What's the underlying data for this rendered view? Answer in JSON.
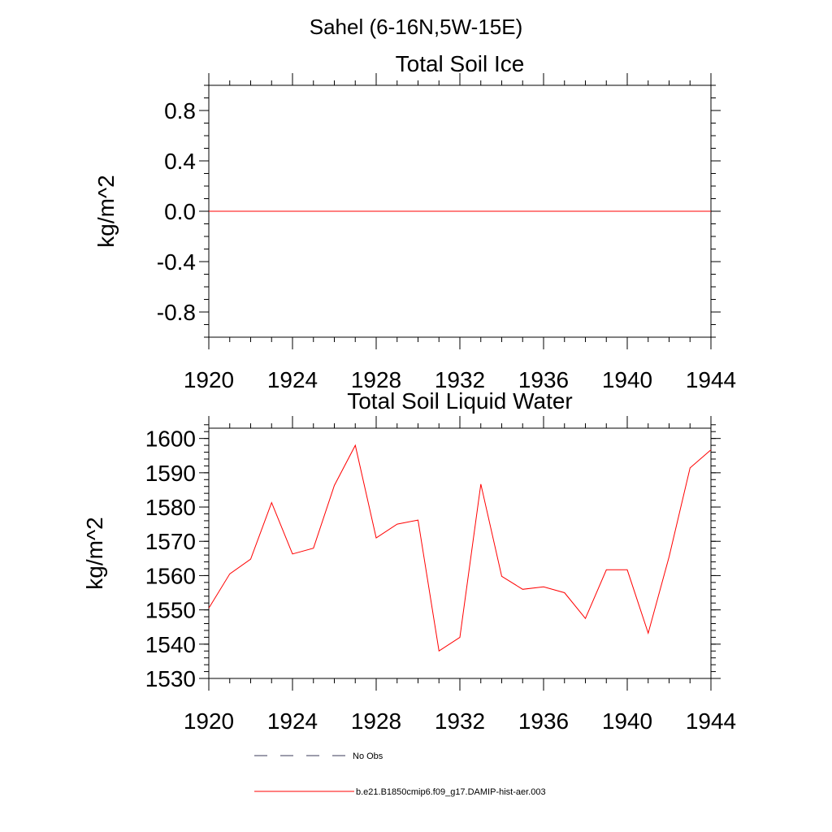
{
  "page_title": "Sahel (6-16N,5W-15E)",
  "colors": {
    "model": "#ff0000",
    "obs": "#3a3a5a",
    "axis": "#000000"
  },
  "chart_data": [
    {
      "type": "line",
      "title": "Total Soil Ice",
      "xlabel": "",
      "ylabel": "kg/m^2",
      "xlim": [
        1920,
        1944
      ],
      "ylim": [
        -1.0,
        1.0
      ],
      "xticks": [
        1920,
        1924,
        1928,
        1932,
        1936,
        1940,
        1944
      ],
      "xtick_labels": [
        "1920",
        "1924",
        "1928",
        "1932",
        "1936",
        "1940",
        "1944"
      ],
      "yticks": [
        -0.8,
        -0.4,
        0.0,
        0.4,
        0.8
      ],
      "ytick_labels": [
        "-0.8",
        "-0.4",
        "0.0",
        "0.4",
        "0.8"
      ],
      "grid": false,
      "series": [
        {
          "name": "b.e21.B1850cmip6.f09_g17.DAMIP-hist-aer.003",
          "x": [
            1920,
            1921,
            1922,
            1923,
            1924,
            1925,
            1926,
            1927,
            1928,
            1929,
            1930,
            1931,
            1932,
            1933,
            1934,
            1935,
            1936,
            1937,
            1938,
            1939,
            1940,
            1941,
            1942,
            1943,
            1944
          ],
          "values": [
            0,
            0,
            0,
            0,
            0,
            0,
            0,
            0,
            0,
            0,
            0,
            0,
            0,
            0,
            0,
            0,
            0,
            0,
            0,
            0,
            0,
            0,
            0,
            0,
            0
          ]
        }
      ]
    },
    {
      "type": "line",
      "title": "Total Soil Liquid Water",
      "xlabel": "",
      "ylabel": "kg/m^2",
      "xlim": [
        1920,
        1944
      ],
      "ylim": [
        1530,
        1603
      ],
      "xticks": [
        1920,
        1924,
        1928,
        1932,
        1936,
        1940,
        1944
      ],
      "xtick_labels": [
        "1920",
        "1924",
        "1928",
        "1932",
        "1936",
        "1940",
        "1944"
      ],
      "yticks": [
        1530,
        1540,
        1550,
        1560,
        1570,
        1580,
        1590,
        1600
      ],
      "ytick_labels": [
        "1530",
        "1540",
        "1550",
        "1560",
        "1570",
        "1580",
        "1590",
        "1600"
      ],
      "grid": false,
      "series": [
        {
          "name": "b.e21.B1850cmip6.f09_g17.DAMIP-hist-aer.003",
          "x": [
            1920,
            1921,
            1922,
            1923,
            1924,
            1925,
            1926,
            1927,
            1928,
            1929,
            1930,
            1931,
            1932,
            1933,
            1934,
            1935,
            1936,
            1937,
            1938,
            1939,
            1940,
            1941,
            1942,
            1943,
            1944
          ],
          "values": [
            1550.5,
            1560.5,
            1564.8,
            1581.3,
            1566.3,
            1568.0,
            1586.3,
            1598.0,
            1571.0,
            1575.0,
            1576.2,
            1538.0,
            1542.0,
            1586.7,
            1559.8,
            1556.0,
            1556.7,
            1555.0,
            1547.5,
            1561.7,
            1561.7,
            1543.2,
            1565.5,
            1591.4,
            1596.7
          ]
        }
      ]
    }
  ],
  "legend": [
    {
      "label": "No Obs",
      "style": "dashed",
      "color": "#3a3a5a"
    },
    {
      "label": "b.e21.B1850cmip6.f09_g17.DAMIP-hist-aer.003",
      "style": "solid",
      "color": "#ff0000"
    }
  ]
}
